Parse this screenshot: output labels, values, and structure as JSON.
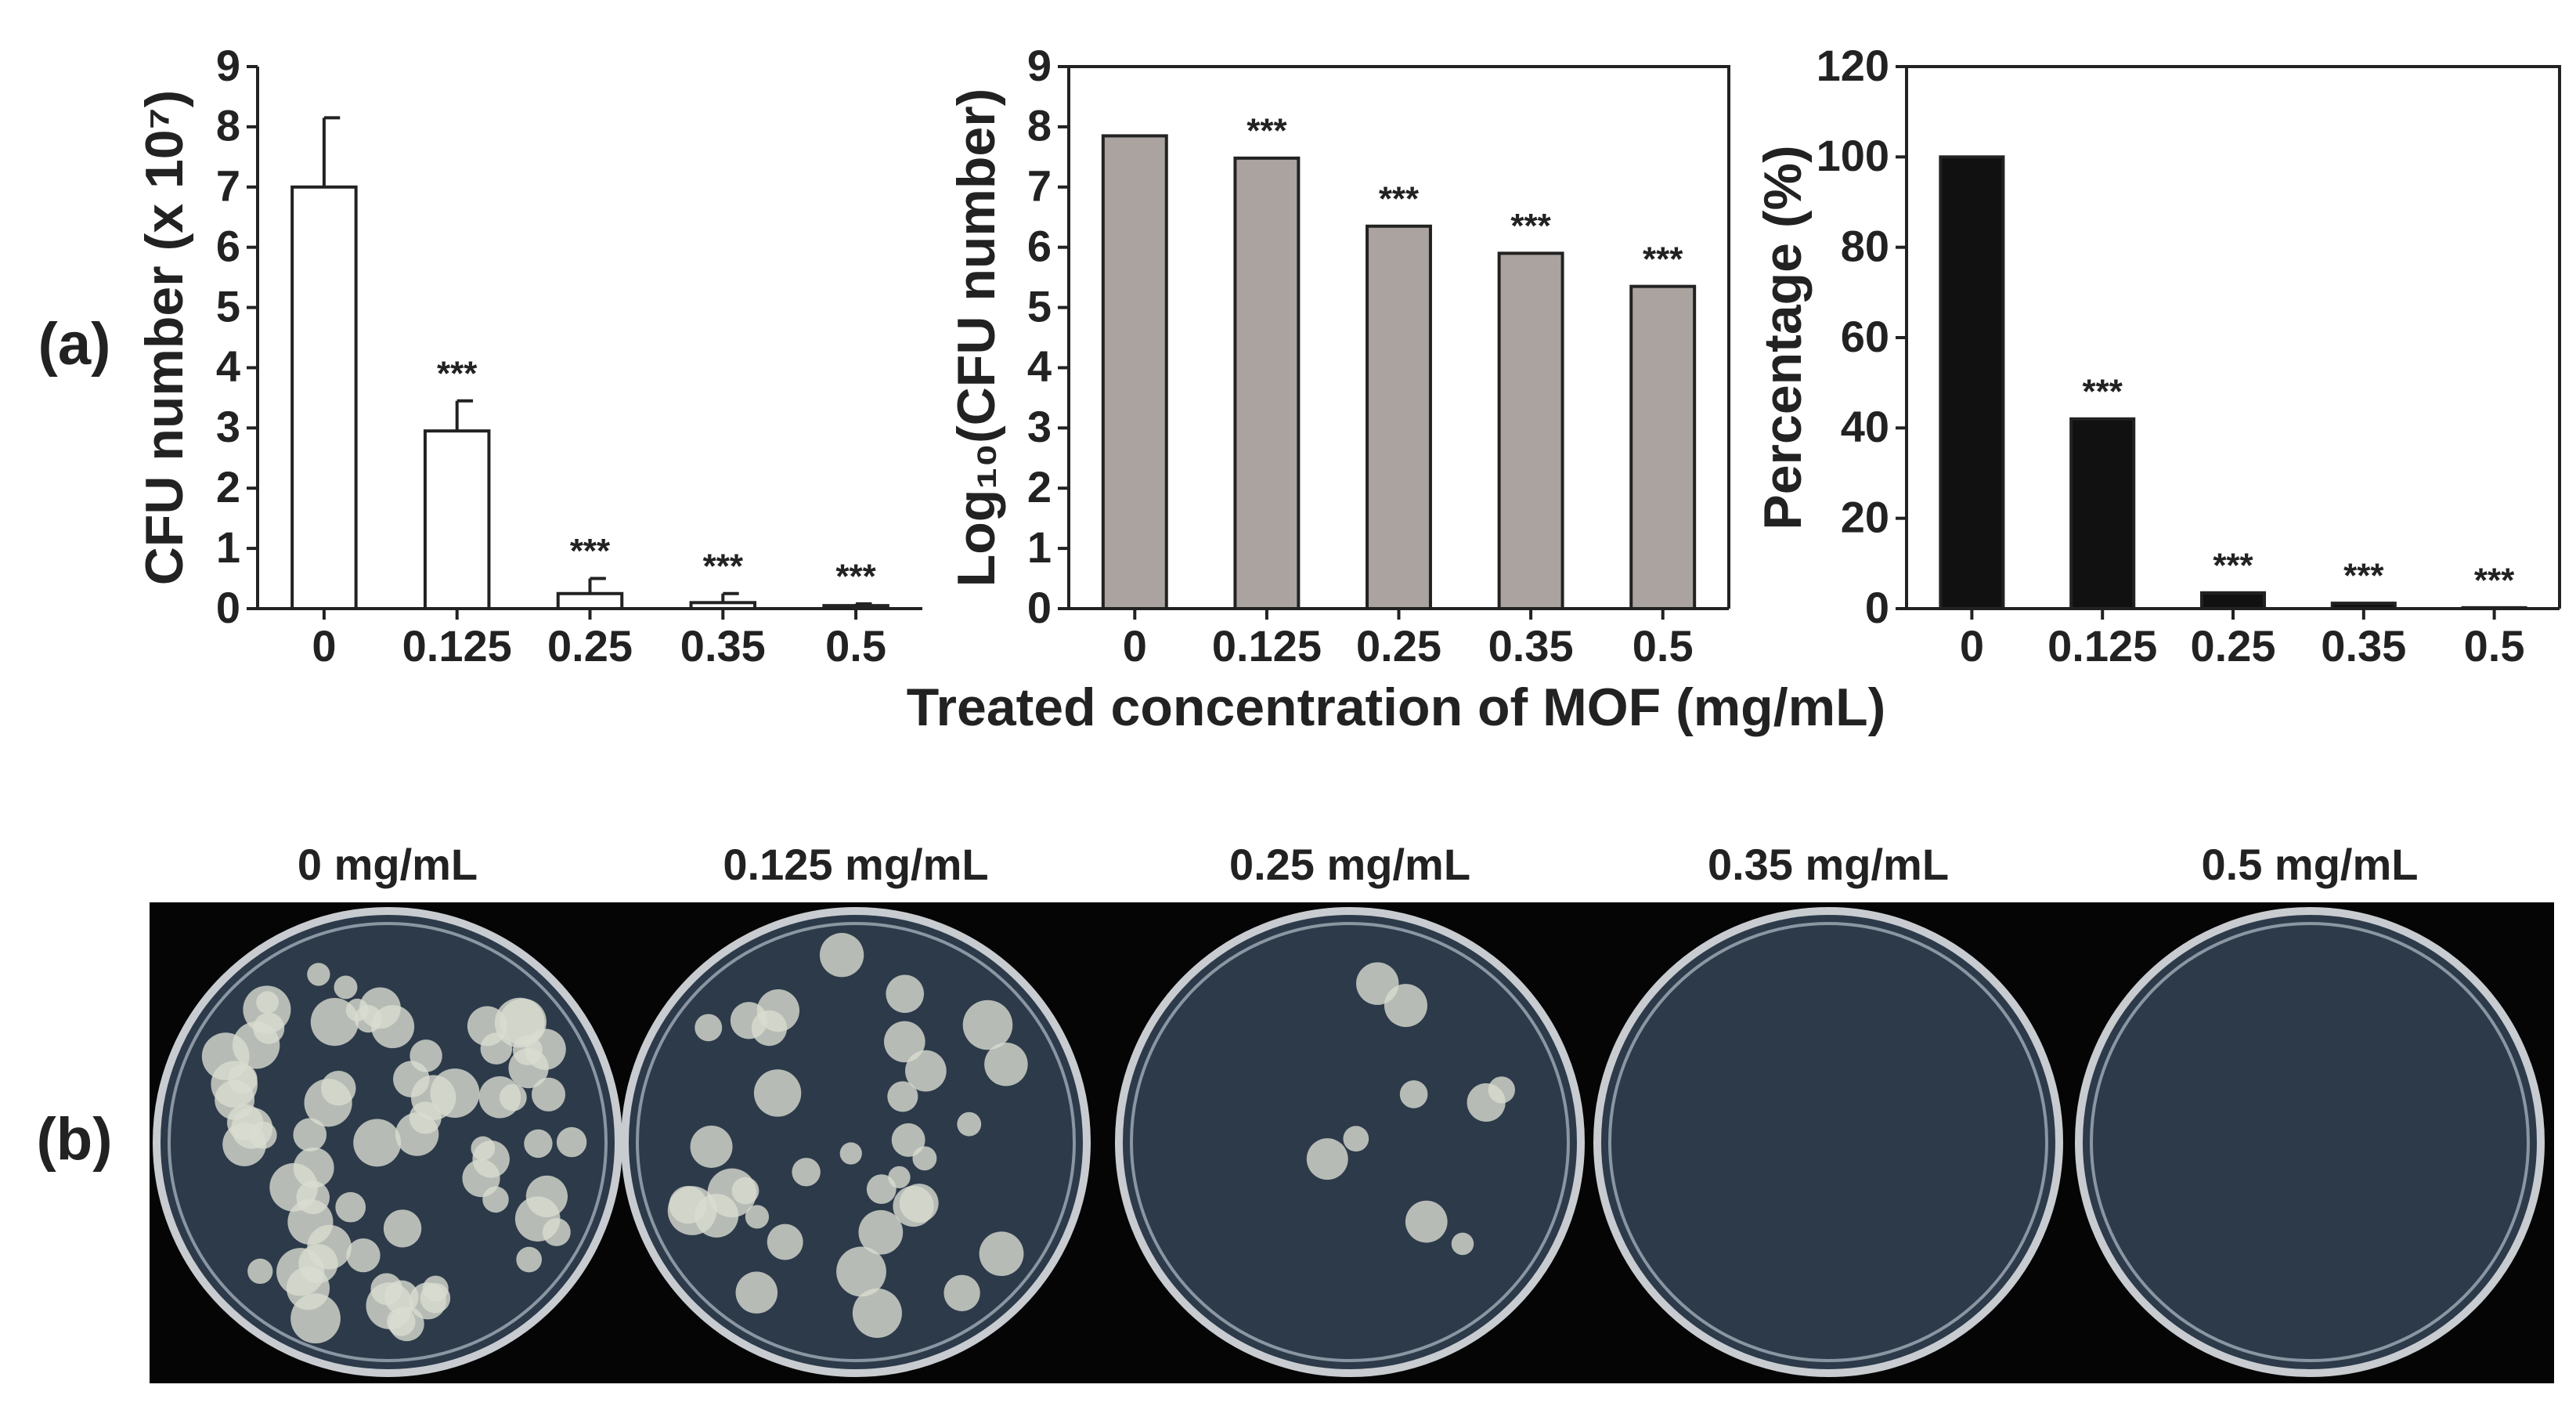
{
  "chart_data": [
    {
      "type": "bar",
      "ylabel": "CFU number (x 10⁷)",
      "categories": [
        "0",
        "0.125",
        "0.25",
        "0.35",
        "0.5"
      ],
      "values": [
        7.0,
        2.95,
        0.25,
        0.1,
        0.05
      ],
      "errors": [
        1.15,
        0.5,
        0.25,
        0.15,
        0.03
      ],
      "annotations": [
        null,
        "***",
        "***",
        "***",
        "***"
      ],
      "color": "#ffffff",
      "ylim": [
        0,
        9
      ],
      "yticks": [
        0,
        1,
        2,
        3,
        4,
        5,
        6,
        7,
        8,
        9
      ],
      "frame": false
    },
    {
      "type": "bar",
      "ylabel": "Log₁₀(CFU number)",
      "categories": [
        "0",
        "0.125",
        "0.25",
        "0.35",
        "0.5"
      ],
      "values": [
        7.85,
        7.48,
        6.35,
        5.9,
        5.35
      ],
      "annotations": [
        null,
        "***",
        "***",
        "***",
        "***"
      ],
      "color": "#aaa3a0",
      "ylim": [
        0,
        9
      ],
      "yticks": [
        0,
        1,
        2,
        3,
        4,
        5,
        6,
        7,
        8,
        9
      ],
      "frame": true
    },
    {
      "type": "bar",
      "ylabel": "Percentage (%)",
      "categories": [
        "0",
        "0.125",
        "0.25",
        "0.35",
        "0.5"
      ],
      "values": [
        100,
        42,
        3.5,
        1.2,
        0.2
      ],
      "annotations": [
        null,
        "***",
        "***",
        "***",
        "***"
      ],
      "color": "#111111",
      "ylim": [
        0,
        120
      ],
      "yticks": [
        0,
        20,
        40,
        60,
        80,
        100,
        120
      ],
      "frame": true
    }
  ],
  "panel_labels": [
    "(a)",
    "(b)"
  ],
  "shared_xlabel": "Treated concentration of MOF (mg/mL)",
  "plate_labels": [
    "0 mg/mL",
    "0.125 mg/mL",
    "0.25 mg/mL",
    "0.35 mg/mL",
    "0.5 mg/mL"
  ]
}
